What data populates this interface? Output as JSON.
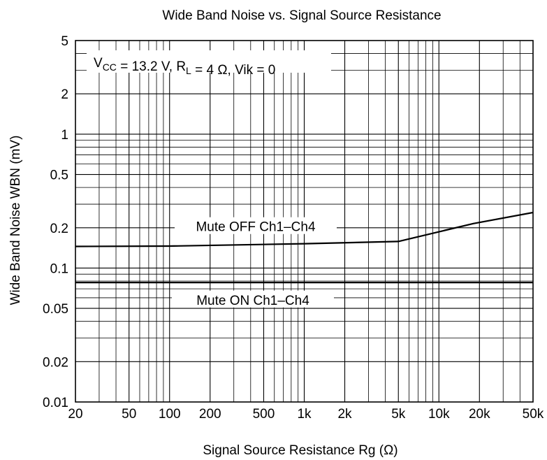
{
  "chart_data": {
    "type": "line",
    "title": "Wide Band Noise vs. Signal Source Resistance",
    "xlabel": "Signal Source Resistance  Rg  (Ω)",
    "ylabel": "Wide Band Noise  WBN  (mV)",
    "x_scale": "log",
    "y_scale": "log",
    "xlim": [
      20,
      50000
    ],
    "ylim": [
      0.01,
      5
    ],
    "grid": true,
    "x_ticks": [
      {
        "value": 20,
        "label": "20"
      },
      {
        "value": 50,
        "label": "50"
      },
      {
        "value": 100,
        "label": "100"
      },
      {
        "value": 200,
        "label": "200"
      },
      {
        "value": 500,
        "label": "500"
      },
      {
        "value": 1000,
        "label": "1k"
      },
      {
        "value": 2000,
        "label": "2k"
      },
      {
        "value": 5000,
        "label": "5k"
      },
      {
        "value": 10000,
        "label": "10k"
      },
      {
        "value": 20000,
        "label": "20k"
      },
      {
        "value": 50000,
        "label": "50k"
      }
    ],
    "y_ticks": [
      {
        "value": 0.01,
        "label": "0.01"
      },
      {
        "value": 0.02,
        "label": "0.02"
      },
      {
        "value": 0.05,
        "label": "0.05"
      },
      {
        "value": 0.1,
        "label": "0.1"
      },
      {
        "value": 0.2,
        "label": "0.2"
      },
      {
        "value": 0.5,
        "label": "0.5"
      },
      {
        "value": 1,
        "label": "1"
      },
      {
        "value": 2,
        "label": "2"
      },
      {
        "value": 5,
        "label": "5"
      }
    ],
    "condition": {
      "v": "V",
      "vsub": "CC",
      "mid1": " = 13.2 V, R",
      "rsub": "L",
      "tail": " = 4 Ω, Vik = 0"
    },
    "series": [
      {
        "name": "Mute OFF Ch1–Ch4",
        "x": [
          20,
          100,
          1000,
          5000,
          18000,
          50000
        ],
        "y": [
          0.145,
          0.146,
          0.152,
          0.158,
          0.215,
          0.26
        ]
      },
      {
        "name": "Mute ON Ch1–Ch4",
        "x": [
          20,
          50000
        ],
        "y": [
          0.078,
          0.078
        ]
      }
    ]
  }
}
